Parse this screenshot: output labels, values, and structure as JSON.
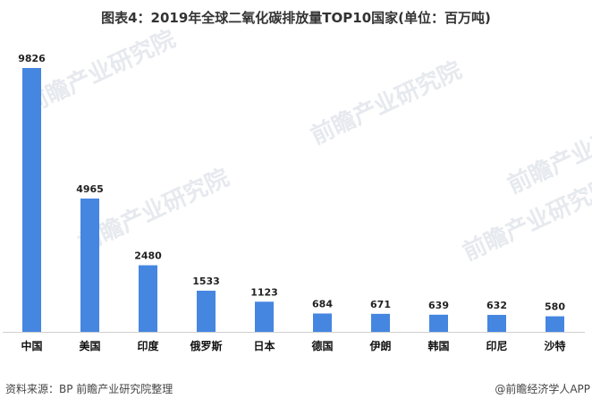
{
  "title": "图表4：2019年全球二氧化碳排放量TOP10国家(单位：百万吨)",
  "source": "资料来源：BP 前瞻产业研究院整理",
  "credit": "@前瞻经济学人APP",
  "watermark": "前瞻产业研究院",
  "chart_data": {
    "type": "bar",
    "title": "图表4：2019年全球二氧化碳排放量TOP10国家(单位：百万吨)",
    "categories": [
      "中国",
      "美国",
      "印度",
      "俄罗斯",
      "日本",
      "德国",
      "伊朗",
      "韩国",
      "印尼",
      "沙特"
    ],
    "values": [
      9826,
      4965,
      2480,
      1533,
      1123,
      684,
      671,
      639,
      632,
      580
    ],
    "ylim": [
      0,
      10000
    ],
    "grid": false,
    "bar_color": "#4586E0",
    "axis_color": "#d0d0d0"
  }
}
